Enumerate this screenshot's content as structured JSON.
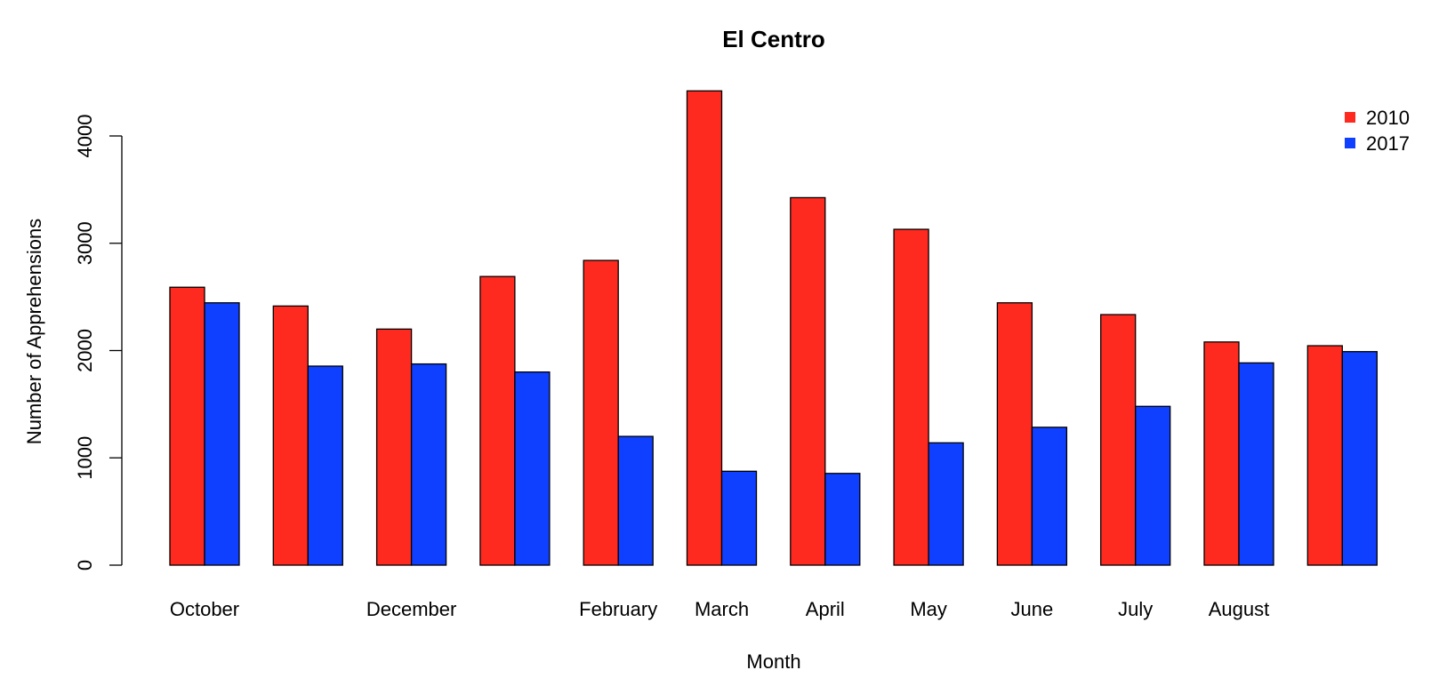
{
  "chart_data": {
    "type": "bar",
    "title": "El Centro",
    "xlabel": "Month",
    "ylabel": "Number of Apprehensions",
    "categories": [
      "October",
      "",
      "December",
      "",
      "February",
      "March",
      "April",
      "May",
      "June",
      "July",
      "August",
      ""
    ],
    "series": [
      {
        "name": "2010",
        "color": "#ff2a1f",
        "values": [
          2590,
          2415,
          2200,
          2690,
          2840,
          4420,
          3425,
          3130,
          2445,
          2335,
          2080,
          2045
        ]
      },
      {
        "name": "2017",
        "color": "#0f3fff",
        "values": [
          2445,
          1855,
          1875,
          1800,
          1200,
          875,
          855,
          1140,
          1285,
          1480,
          1885,
          1990
        ]
      }
    ],
    "ylim": [
      0,
      4500
    ],
    "yticks": [
      "0",
      "1000",
      "2000",
      "3000",
      "4000"
    ],
    "grid": false,
    "legend_position": "top-right"
  }
}
